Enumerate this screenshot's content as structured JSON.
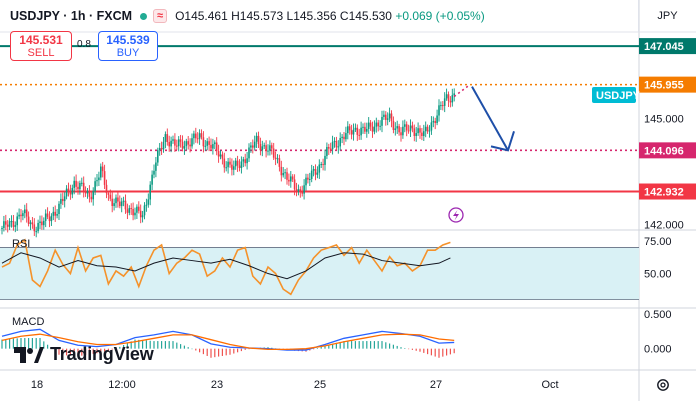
{
  "header": {
    "symbol": "USDJPY · 1h · FXCM",
    "ohlc_open": "O145.461",
    "ohlc_high": "H145.573",
    "ohlc_low": "L145.356",
    "ohlc_close": "C145.530",
    "change": "+0.069 (+0.05%)",
    "currency": "JPY"
  },
  "trade": {
    "sell_price": "145.531",
    "sell_label": "SELL",
    "buy_price": "145.539",
    "buy_label": "BUY",
    "spread": "0.8"
  },
  "logo": {
    "text": "TradingView"
  },
  "colors": {
    "up": "#089981",
    "down": "#f23645",
    "teal_line": "#00796b",
    "orange": "#f57c00",
    "red_line": "#f23645",
    "magenta": "#d6266d",
    "arrow": "#1e4fa8",
    "rsi": "#f5922a",
    "rsi_band": "#d9f1f5",
    "macd": "#2962ff"
  },
  "chart_data": [
    {
      "type": "candlestick",
      "panel": "price",
      "x_ticks": [
        "18",
        "12:00",
        "23",
        "25",
        "27",
        "Oct"
      ],
      "y_ticks": [
        142.0,
        145.0
      ],
      "ylim": [
        141.9,
        147.5
      ],
      "levels": [
        {
          "value": 147.045,
          "label": "147.045",
          "style": "solid",
          "color": "#00796b"
        },
        {
          "value": 145.955,
          "label": "145.955",
          "style": "dotted",
          "color": "#f57c00"
        },
        {
          "value": 144.096,
          "label": "144.096",
          "style": "dotted",
          "color": "#d6266d"
        },
        {
          "value": 142.932,
          "label": "142.932",
          "style": "solid",
          "color": "#f23645"
        }
      ],
      "last_price_label": "USDJPY",
      "projection": {
        "from": 145.955,
        "to": 144.096
      },
      "close_path": [
        [
          0,
          141.9
        ],
        [
          5,
          142.0
        ],
        [
          10,
          142.35
        ],
        [
          16,
          141.95
        ],
        [
          22,
          142.05
        ],
        [
          30,
          142.5
        ],
        [
          38,
          143.2
        ],
        [
          46,
          142.8
        ],
        [
          52,
          143.5
        ],
        [
          56,
          142.8
        ],
        [
          62,
          142.55
        ],
        [
          68,
          142.45
        ],
        [
          74,
          142.2
        ],
        [
          80,
          143.6
        ],
        [
          86,
          144.5
        ],
        [
          92,
          144.2
        ],
        [
          98,
          144.35
        ],
        [
          104,
          144.45
        ],
        [
          110,
          144.25
        ],
        [
          116,
          143.85
        ],
        [
          122,
          143.55
        ],
        [
          128,
          143.9
        ],
        [
          134,
          144.35
        ],
        [
          140,
          144.15
        ],
        [
          146,
          143.7
        ],
        [
          150,
          143.3
        ],
        [
          156,
          142.95
        ],
        [
          162,
          143.3
        ],
        [
          168,
          143.75
        ],
        [
          174,
          144.25
        ],
        [
          180,
          144.5
        ],
        [
          186,
          144.7
        ],
        [
          192,
          144.65
        ],
        [
          198,
          144.9
        ],
        [
          204,
          145.0
        ],
        [
          210,
          144.6
        ],
        [
          216,
          144.75
        ],
        [
          222,
          144.5
        ],
        [
          228,
          145.05
        ],
        [
          234,
          145.55
        ],
        [
          238,
          145.7
        ]
      ]
    },
    {
      "type": "line",
      "panel": "RSI",
      "title": "RSI",
      "y_ticks": [
        75.0,
        50.0
      ],
      "ylim": [
        25,
        82
      ],
      "band": [
        30,
        70
      ],
      "rsi": [
        [
          0,
          55
        ],
        [
          4,
          58
        ],
        [
          8,
          72
        ],
        [
          12,
          76
        ],
        [
          16,
          45
        ],
        [
          20,
          40
        ],
        [
          24,
          52
        ],
        [
          28,
          68
        ],
        [
          32,
          57
        ],
        [
          36,
          50
        ],
        [
          40,
          70
        ],
        [
          44,
          52
        ],
        [
          48,
          62
        ],
        [
          52,
          64
        ],
        [
          56,
          42
        ],
        [
          60,
          52
        ],
        [
          64,
          48
        ],
        [
          68,
          55
        ],
        [
          72,
          40
        ],
        [
          76,
          56
        ],
        [
          80,
          68
        ],
        [
          84,
          72
        ],
        [
          88,
          50
        ],
        [
          92,
          58
        ],
        [
          96,
          62
        ],
        [
          100,
          68
        ],
        [
          104,
          65
        ],
        [
          108,
          48
        ],
        [
          112,
          52
        ],
        [
          116,
          62
        ],
        [
          120,
          55
        ],
        [
          124,
          68
        ],
        [
          128,
          70
        ],
        [
          132,
          48
        ],
        [
          136,
          42
        ],
        [
          140,
          55
        ],
        [
          144,
          50
        ],
        [
          148,
          38
        ],
        [
          152,
          34
        ],
        [
          156,
          45
        ],
        [
          160,
          52
        ],
        [
          164,
          62
        ],
        [
          168,
          68
        ],
        [
          172,
          70
        ],
        [
          176,
          72
        ],
        [
          180,
          64
        ],
        [
          184,
          70
        ],
        [
          188,
          58
        ],
        [
          192,
          68
        ],
        [
          196,
          60
        ],
        [
          200,
          52
        ],
        [
          204,
          63
        ],
        [
          208,
          56
        ],
        [
          212,
          58
        ],
        [
          216,
          52
        ],
        [
          220,
          56
        ],
        [
          224,
          68
        ],
        [
          228,
          68
        ],
        [
          232,
          72
        ],
        [
          236,
          74
        ]
      ],
      "signal": [
        [
          0,
          58
        ],
        [
          10,
          66
        ],
        [
          20,
          62
        ],
        [
          30,
          55
        ],
        [
          40,
          60
        ],
        [
          50,
          56
        ],
        [
          60,
          55
        ],
        [
          70,
          52
        ],
        [
          80,
          58
        ],
        [
          90,
          62
        ],
        [
          100,
          60
        ],
        [
          110,
          58
        ],
        [
          120,
          61
        ],
        [
          130,
          56
        ],
        [
          140,
          50
        ],
        [
          150,
          46
        ],
        [
          160,
          52
        ],
        [
          170,
          62
        ],
        [
          180,
          66
        ],
        [
          190,
          65
        ],
        [
          200,
          60
        ],
        [
          210,
          58
        ],
        [
          220,
          56
        ],
        [
          230,
          58
        ],
        [
          236,
          62
        ]
      ]
    },
    {
      "type": "bar+line",
      "panel": "MACD",
      "title": "MACD",
      "y_ticks": [
        0.5,
        0.0
      ],
      "ylim": [
        -0.28,
        0.56
      ],
      "macd": [
        [
          0,
          0.18
        ],
        [
          10,
          0.25
        ],
        [
          20,
          0.28
        ],
        [
          30,
          0.12
        ],
        [
          40,
          0.05
        ],
        [
          50,
          0.03
        ],
        [
          60,
          0.06
        ],
        [
          70,
          0.16
        ],
        [
          80,
          0.2
        ],
        [
          90,
          0.25
        ],
        [
          100,
          0.2
        ],
        [
          110,
          0.07
        ],
        [
          120,
          0.02
        ],
        [
          130,
          0.01
        ],
        [
          140,
          0.0
        ],
        [
          150,
          -0.02
        ],
        [
          160,
          -0.02
        ],
        [
          170,
          0.06
        ],
        [
          180,
          0.15
        ],
        [
          190,
          0.2
        ],
        [
          200,
          0.25
        ],
        [
          210,
          0.22
        ],
        [
          220,
          0.18
        ],
        [
          230,
          0.08
        ],
        [
          238,
          0.09
        ]
      ],
      "signal": [
        [
          0,
          0.12
        ],
        [
          10,
          0.18
        ],
        [
          20,
          0.21
        ],
        [
          30,
          0.16
        ],
        [
          40,
          0.1
        ],
        [
          50,
          0.06
        ],
        [
          60,
          0.06
        ],
        [
          70,
          0.1
        ],
        [
          80,
          0.15
        ],
        [
          90,
          0.2
        ],
        [
          100,
          0.2
        ],
        [
          110,
          0.13
        ],
        [
          120,
          0.06
        ],
        [
          130,
          0.01
        ],
        [
          140,
          -0.01
        ],
        [
          150,
          -0.01
        ],
        [
          160,
          0.0
        ],
        [
          170,
          0.04
        ],
        [
          180,
          0.1
        ],
        [
          190,
          0.15
        ],
        [
          200,
          0.2
        ],
        [
          210,
          0.21
        ],
        [
          220,
          0.2
        ],
        [
          230,
          0.14
        ],
        [
          238,
          0.12
        ]
      ]
    }
  ]
}
